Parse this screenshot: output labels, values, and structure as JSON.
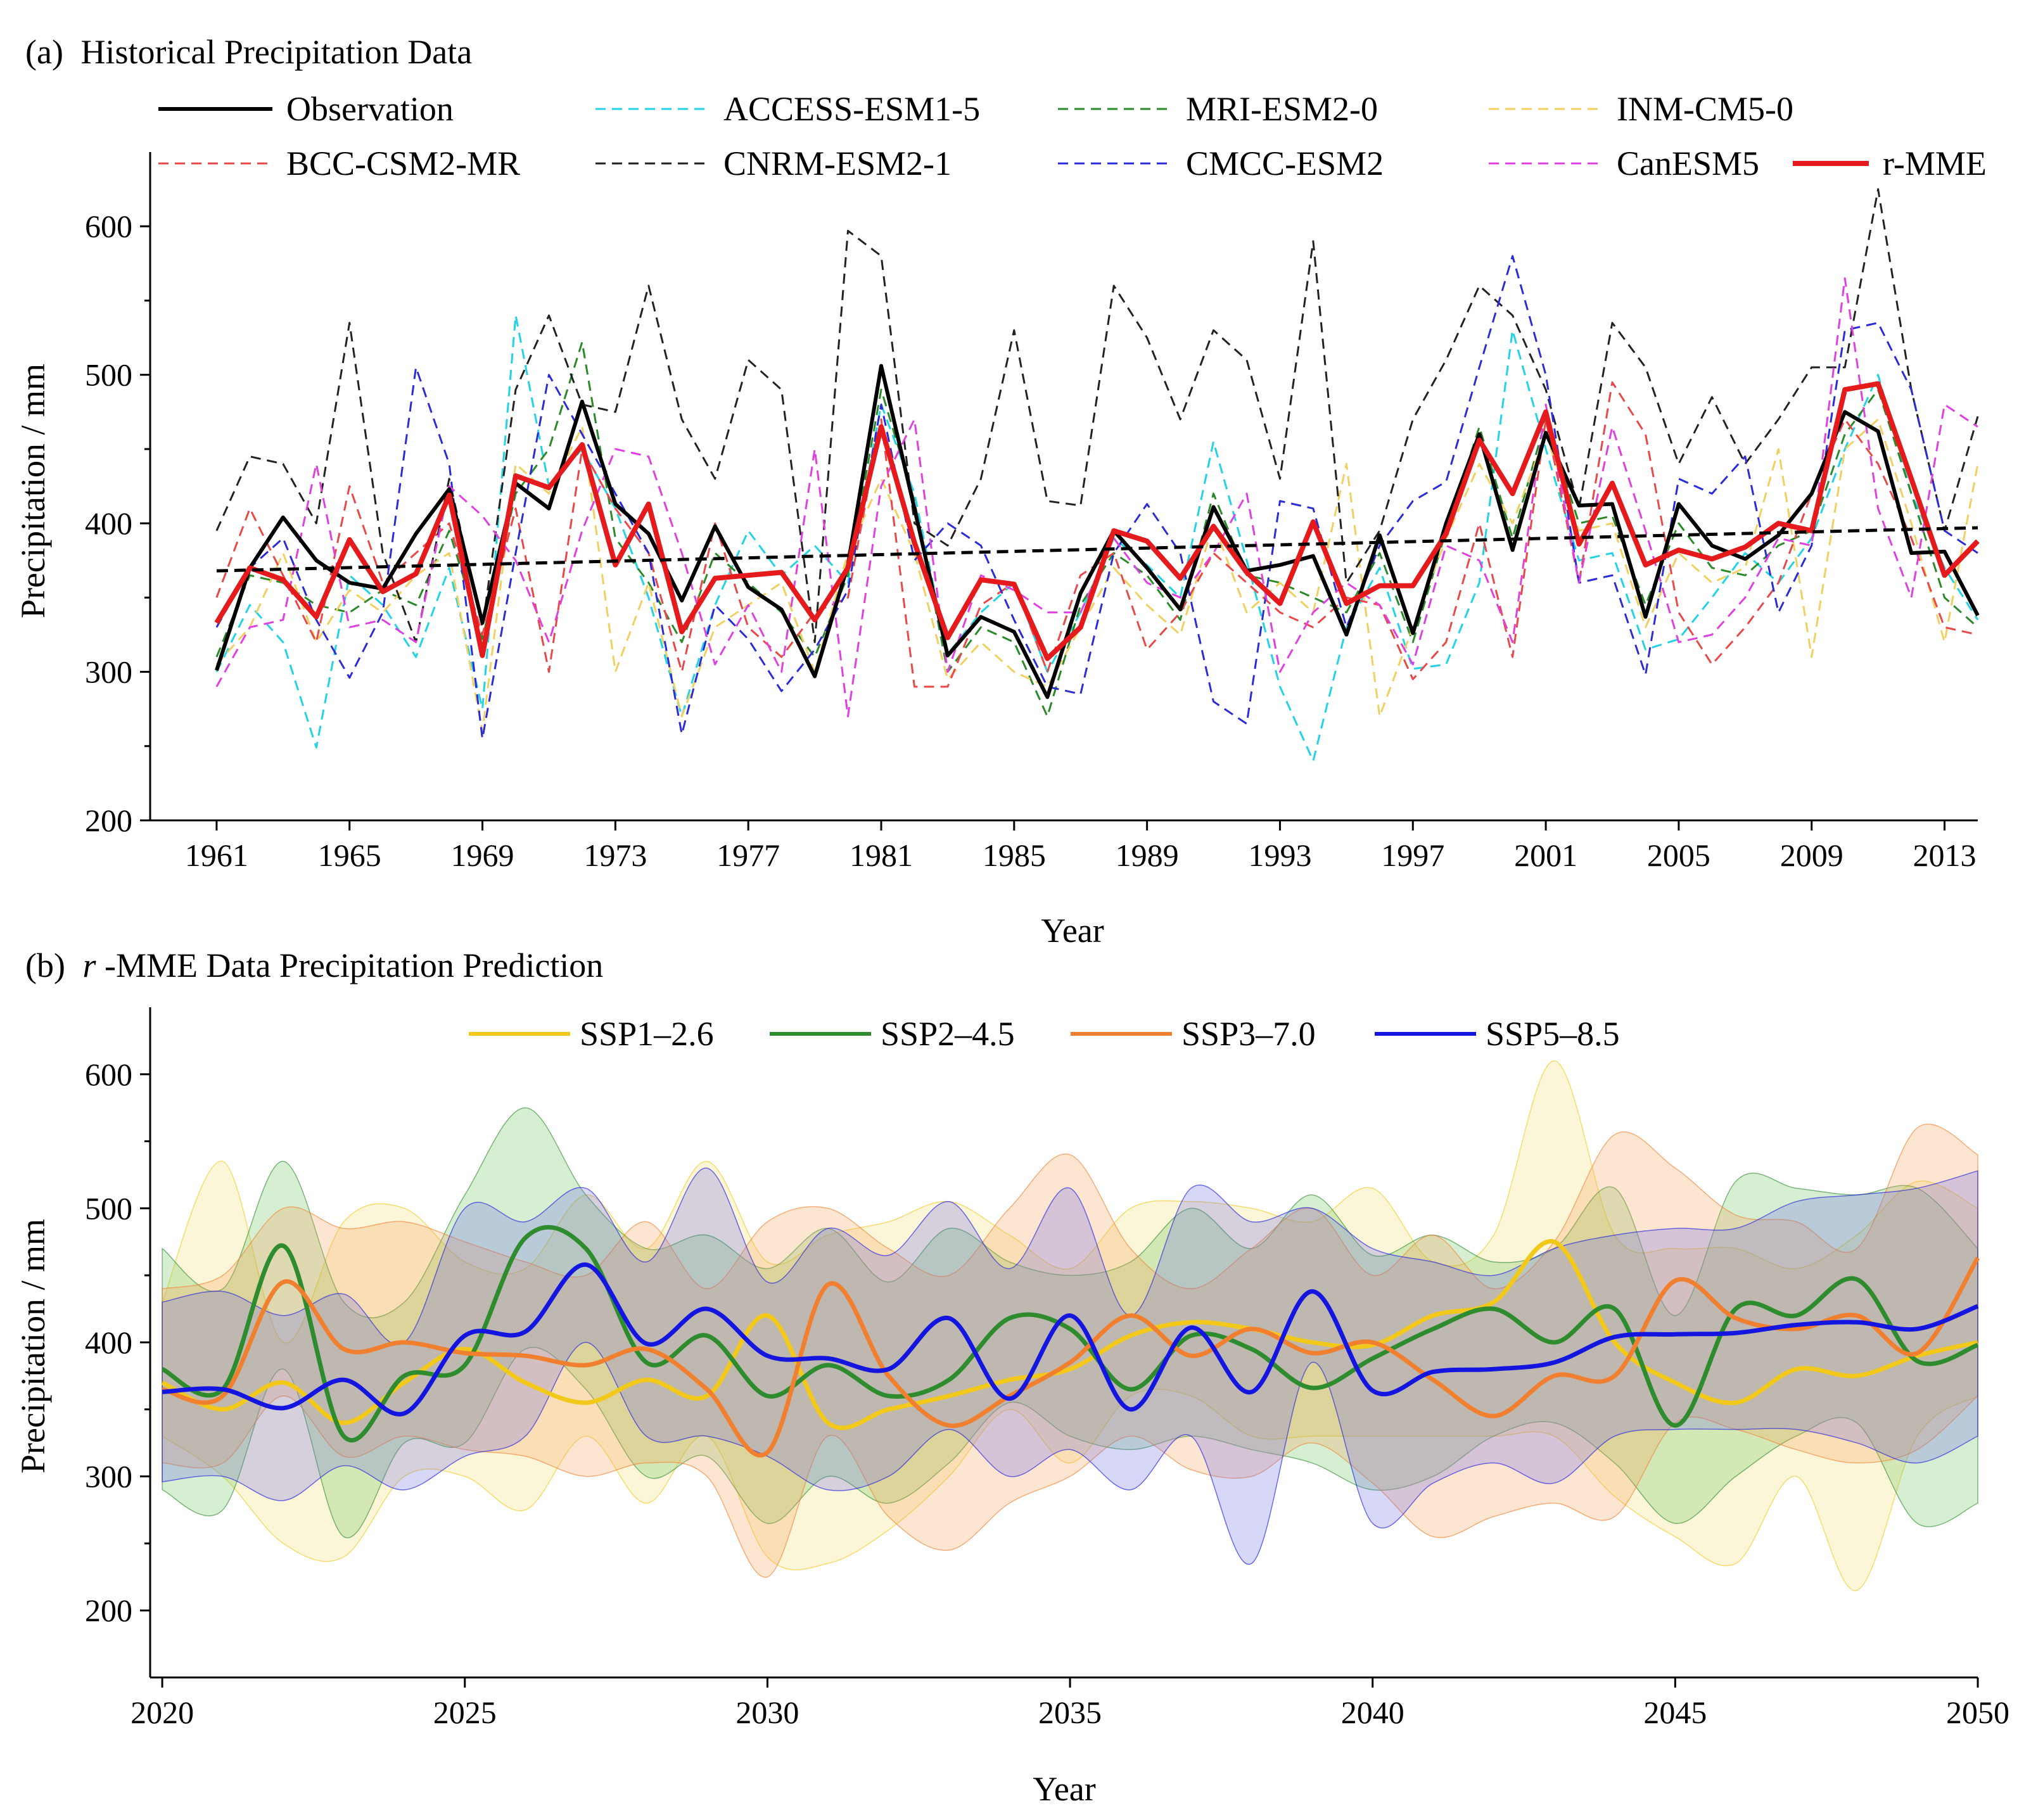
{
  "chart_data": [
    {
      "panel": "a",
      "type": "line",
      "title": "(a) Historical Precipitation Data",
      "title_prefix": "(a)",
      "title_text": "Historical Precipitation Data",
      "xlabel": "Year",
      "ylabel": "Precipitation / mm",
      "xlim": [
        1959,
        2014
      ],
      "ylim": [
        200,
        650
      ],
      "xticks": [
        1961,
        1965,
        1969,
        1973,
        1977,
        1981,
        1985,
        1989,
        1993,
        1997,
        2001,
        2005,
        2009,
        2013
      ],
      "yticks": [
        200,
        300,
        400,
        500,
        600
      ],
      "x_start": 1961,
      "legend_placement": "top",
      "series": [
        {
          "name": "Observation",
          "color": "#000000",
          "style": "solid",
          "width": 6,
          "values": [
            301,
            370,
            404,
            375,
            360,
            356,
            393,
            423,
            333,
            427,
            410,
            482,
            413,
            393,
            348,
            398,
            357,
            342,
            297,
            372,
            506,
            410,
            311,
            337,
            327,
            283,
            353,
            395,
            370,
            342,
            411,
            368,
            372,
            378,
            325,
            392,
            326,
            400,
            460,
            382,
            461,
            412,
            413,
            337,
            413,
            385,
            376,
            392,
            420,
            475,
            462,
            380,
            381,
            338
          ]
        },
        {
          "name": "ACCESS-ESM1-5",
          "color": "#22d3e6",
          "style": "dashed",
          "width": 3,
          "values": [
            300,
            345,
            320,
            249,
            365,
            345,
            310,
            370,
            275,
            540,
            425,
            450,
            410,
            350,
            270,
            345,
            395,
            365,
            385,
            360,
            480,
            420,
            312,
            340,
            360,
            300,
            340,
            390,
            372,
            350,
            455,
            375,
            290,
            240,
            330,
            370,
            302,
            305,
            360,
            530,
            450,
            375,
            380,
            315,
            322,
            350,
            380,
            360,
            390,
            450,
            500,
            420,
            370,
            335
          ]
        },
        {
          "name": "MRI-ESM2-0",
          "color": "#2a8a2a",
          "style": "dashed",
          "width": 3,
          "values": [
            310,
            365,
            360,
            345,
            340,
            355,
            345,
            395,
            322,
            420,
            450,
            522,
            390,
            360,
            320,
            380,
            360,
            340,
            310,
            365,
            490,
            415,
            300,
            330,
            320,
            270,
            345,
            380,
            365,
            335,
            420,
            365,
            360,
            350,
            340,
            380,
            320,
            395,
            465,
            390,
            470,
            400,
            405,
            345,
            400,
            370,
            365,
            385,
            395,
            460,
            490,
            420,
            350,
            330
          ]
        },
        {
          "name": "INM-CM5-0",
          "color": "#f0d060",
          "style": "dashed",
          "width": 3,
          "values": [
            305,
            330,
            380,
            320,
            355,
            340,
            365,
            380,
            260,
            440,
            420,
            465,
            300,
            360,
            270,
            330,
            345,
            360,
            300,
            380,
            430,
            380,
            295,
            320,
            300,
            290,
            330,
            370,
            345,
            325,
            400,
            340,
            360,
            340,
            440,
            270,
            330,
            390,
            440,
            400,
            460,
            395,
            400,
            330,
            380,
            360,
            370,
            450,
            310,
            450,
            470,
            400,
            320,
            440
          ]
        },
        {
          "name": "BCC-CSM2-MR",
          "color": "#e84848",
          "style": "dashed",
          "width": 3,
          "values": [
            350,
            410,
            365,
            320,
            425,
            360,
            380,
            400,
            325,
            410,
            300,
            450,
            410,
            380,
            300,
            400,
            330,
            310,
            340,
            350,
            470,
            290,
            290,
            345,
            360,
            300,
            365,
            380,
            315,
            340,
            380,
            360,
            340,
            330,
            350,
            345,
            295,
            320,
            400,
            310,
            470,
            360,
            495,
            460,
            340,
            305,
            330,
            360,
            420,
            470,
            440,
            390,
            330,
            325
          ]
        },
        {
          "name": "CNRM-ESM2-1",
          "color": "#222222",
          "style": "dashed",
          "width": 3,
          "values": [
            395,
            445,
            440,
            400,
            535,
            380,
            320,
            430,
            330,
            490,
            540,
            480,
            475,
            560,
            470,
            430,
            510,
            490,
            320,
            597,
            580,
            400,
            385,
            430,
            530,
            415,
            412,
            560,
            525,
            470,
            530,
            510,
            430,
            590,
            360,
            395,
            470,
            510,
            560,
            540,
            490,
            410,
            535,
            505,
            440,
            485,
            440,
            470,
            505,
            505,
            625,
            490,
            395,
            472
          ]
        },
        {
          "name": "CMCC-ESM2",
          "color": "#2b2bd8",
          "style": "dashed",
          "width": 3,
          "values": [
            330,
            370,
            390,
            335,
            296,
            340,
            505,
            440,
            255,
            380,
            500,
            460,
            420,
            380,
            258,
            345,
            322,
            287,
            315,
            355,
            480,
            375,
            400,
            385,
            335,
            290,
            285,
            380,
            413,
            380,
            280,
            265,
            415,
            410,
            330,
            385,
            415,
            428,
            505,
            580,
            500,
            360,
            365,
            298,
            430,
            420,
            445,
            340,
            385,
            530,
            535,
            490,
            395,
            380
          ]
        },
        {
          "name": "CanESM5",
          "color": "#e040e0",
          "style": "dashed",
          "width": 3,
          "values": [
            290,
            330,
            335,
            440,
            330,
            335,
            320,
            425,
            405,
            375,
            320,
            395,
            450,
            445,
            380,
            305,
            345,
            300,
            450,
            270,
            425,
            470,
            300,
            365,
            355,
            340,
            340,
            390,
            360,
            350,
            380,
            420,
            300,
            340,
            360,
            345,
            305,
            385,
            375,
            320,
            480,
            360,
            465,
            395,
            320,
            325,
            350,
            390,
            385,
            565,
            410,
            350,
            480,
            465
          ]
        },
        {
          "name": "r-MME",
          "color": "#e41a1c",
          "style": "solid",
          "width": 8,
          "values": [
            333,
            370,
            362,
            337,
            389,
            354,
            366,
            419,
            311,
            432,
            424,
            453,
            372,
            413,
            327,
            363,
            365,
            367,
            335,
            370,
            465,
            387,
            323,
            362,
            359,
            309,
            330,
            395,
            388,
            363,
            398,
            367,
            346,
            401,
            346,
            358,
            358,
            393,
            456,
            420,
            475,
            386,
            427,
            372,
            382,
            376,
            384,
            400,
            395,
            490,
            494,
            430,
            365,
            388
          ]
        },
        {
          "name": "Observation trend",
          "color": "#000000",
          "style": "dashed",
          "width": 5,
          "legend": false,
          "values_linear": [
            368,
            397
          ]
        }
      ]
    },
    {
      "panel": "b",
      "type": "area",
      "title": "(b) r-MME Data Precipitation Prediction",
      "title_prefix": "(b)",
      "title_italic": "r",
      "title_text": "-MME Data Precipitation Prediction",
      "xlabel": "Year",
      "ylabel": "Precipitation / mm",
      "xlim": [
        2019.8,
        2050
      ],
      "ylim": [
        150,
        650
      ],
      "xticks": [
        2020,
        2025,
        2030,
        2035,
        2040,
        2045,
        2050
      ],
      "yticks": [
        200,
        300,
        400,
        500,
        600
      ],
      "x_start": 2020,
      "legend_placement": "top",
      "series": [
        {
          "name": "SSP1–2.6",
          "color": "#f2c81b",
          "fill": "rgba(240,215,80,0.22)",
          "mean": [
            370,
            350,
            370,
            340,
            370,
            395,
            370,
            355,
            372,
            360,
            420,
            340,
            350,
            360,
            372,
            380,
            405,
            415,
            410,
            400,
            398,
            420,
            430,
            475,
            400,
            370,
            355,
            380,
            375,
            390,
            400
          ],
          "upper": [
            430,
            535,
            400,
            490,
            500,
            460,
            455,
            510,
            470,
            535,
            460,
            480,
            490,
            505,
            480,
            455,
            500,
            505,
            500,
            490,
            515,
            460,
            480,
            610,
            480,
            470,
            470,
            455,
            480,
            520,
            500
          ],
          "lower": [
            330,
            300,
            250,
            240,
            300,
            300,
            275,
            330,
            280,
            330,
            240,
            235,
            260,
            300,
            350,
            310,
            360,
            360,
            330,
            330,
            330,
            330,
            330,
            330,
            285,
            255,
            235,
            300,
            215,
            330,
            360
          ]
        },
        {
          "name": "SSP2–4.5",
          "color": "#2e8b2e",
          "fill": "rgba(90,190,80,0.25)",
          "mean": [
            380,
            365,
            472,
            330,
            375,
            383,
            478,
            470,
            385,
            405,
            360,
            383,
            360,
            372,
            418,
            410,
            365,
            405,
            395,
            366,
            388,
            410,
            425,
            400,
            425,
            338,
            425,
            420,
            447,
            386,
            398
          ],
          "upper": [
            470,
            440,
            535,
            430,
            430,
            510,
            575,
            510,
            470,
            480,
            455,
            485,
            445,
            485,
            460,
            450,
            460,
            500,
            470,
            510,
            465,
            480,
            460,
            470,
            515,
            420,
            520,
            515,
            510,
            515,
            470
          ],
          "lower": [
            290,
            275,
            380,
            255,
            325,
            325,
            395,
            365,
            300,
            315,
            265,
            300,
            280,
            310,
            355,
            330,
            320,
            330,
            320,
            310,
            290,
            300,
            330,
            340,
            310,
            265,
            300,
            330,
            340,
            265,
            280
          ]
        },
        {
          "name": "SSP3–7.0",
          "color": "#f08030",
          "fill": "rgba(245,160,90,0.28)",
          "mean": [
            365,
            360,
            445,
            395,
            400,
            392,
            390,
            383,
            395,
            365,
            318,
            443,
            375,
            338,
            360,
            385,
            420,
            390,
            410,
            392,
            400,
            372,
            345,
            375,
            375,
            446,
            418,
            410,
            420,
            392,
            463
          ],
          "upper": [
            440,
            450,
            500,
            485,
            490,
            475,
            460,
            450,
            490,
            440,
            490,
            500,
            470,
            450,
            500,
            540,
            470,
            440,
            470,
            500,
            450,
            480,
            440,
            475,
            555,
            530,
            495,
            490,
            470,
            560,
            540
          ],
          "lower": [
            310,
            310,
            360,
            315,
            330,
            320,
            315,
            300,
            310,
            300,
            225,
            330,
            270,
            245,
            280,
            300,
            330,
            305,
            300,
            325,
            295,
            255,
            270,
            280,
            270,
            340,
            335,
            320,
            310,
            320,
            360
          ]
        },
        {
          "name": "SSP5–8.5",
          "color": "#1515e0",
          "fill": "rgba(110,110,230,0.28)",
          "mean": [
            363,
            365,
            351,
            372,
            347,
            405,
            408,
            458,
            399,
            425,
            390,
            388,
            380,
            418,
            358,
            420,
            350,
            411,
            363,
            438,
            364,
            378,
            380,
            385,
            404,
            406,
            407,
            413,
            415,
            410,
            427
          ],
          "upper": [
            430,
            438,
            420,
            436,
            400,
            500,
            490,
            515,
            460,
            530,
            445,
            485,
            465,
            505,
            455,
            515,
            420,
            515,
            490,
            500,
            470,
            460,
            450,
            470,
            480,
            485,
            485,
            505,
            510,
            515,
            528
          ],
          "lower": [
            296,
            300,
            282,
            308,
            290,
            315,
            330,
            400,
            330,
            330,
            315,
            290,
            300,
            335,
            300,
            320,
            290,
            330,
            235,
            385,
            265,
            295,
            310,
            295,
            330,
            335,
            335,
            335,
            325,
            310,
            330
          ]
        }
      ]
    }
  ]
}
